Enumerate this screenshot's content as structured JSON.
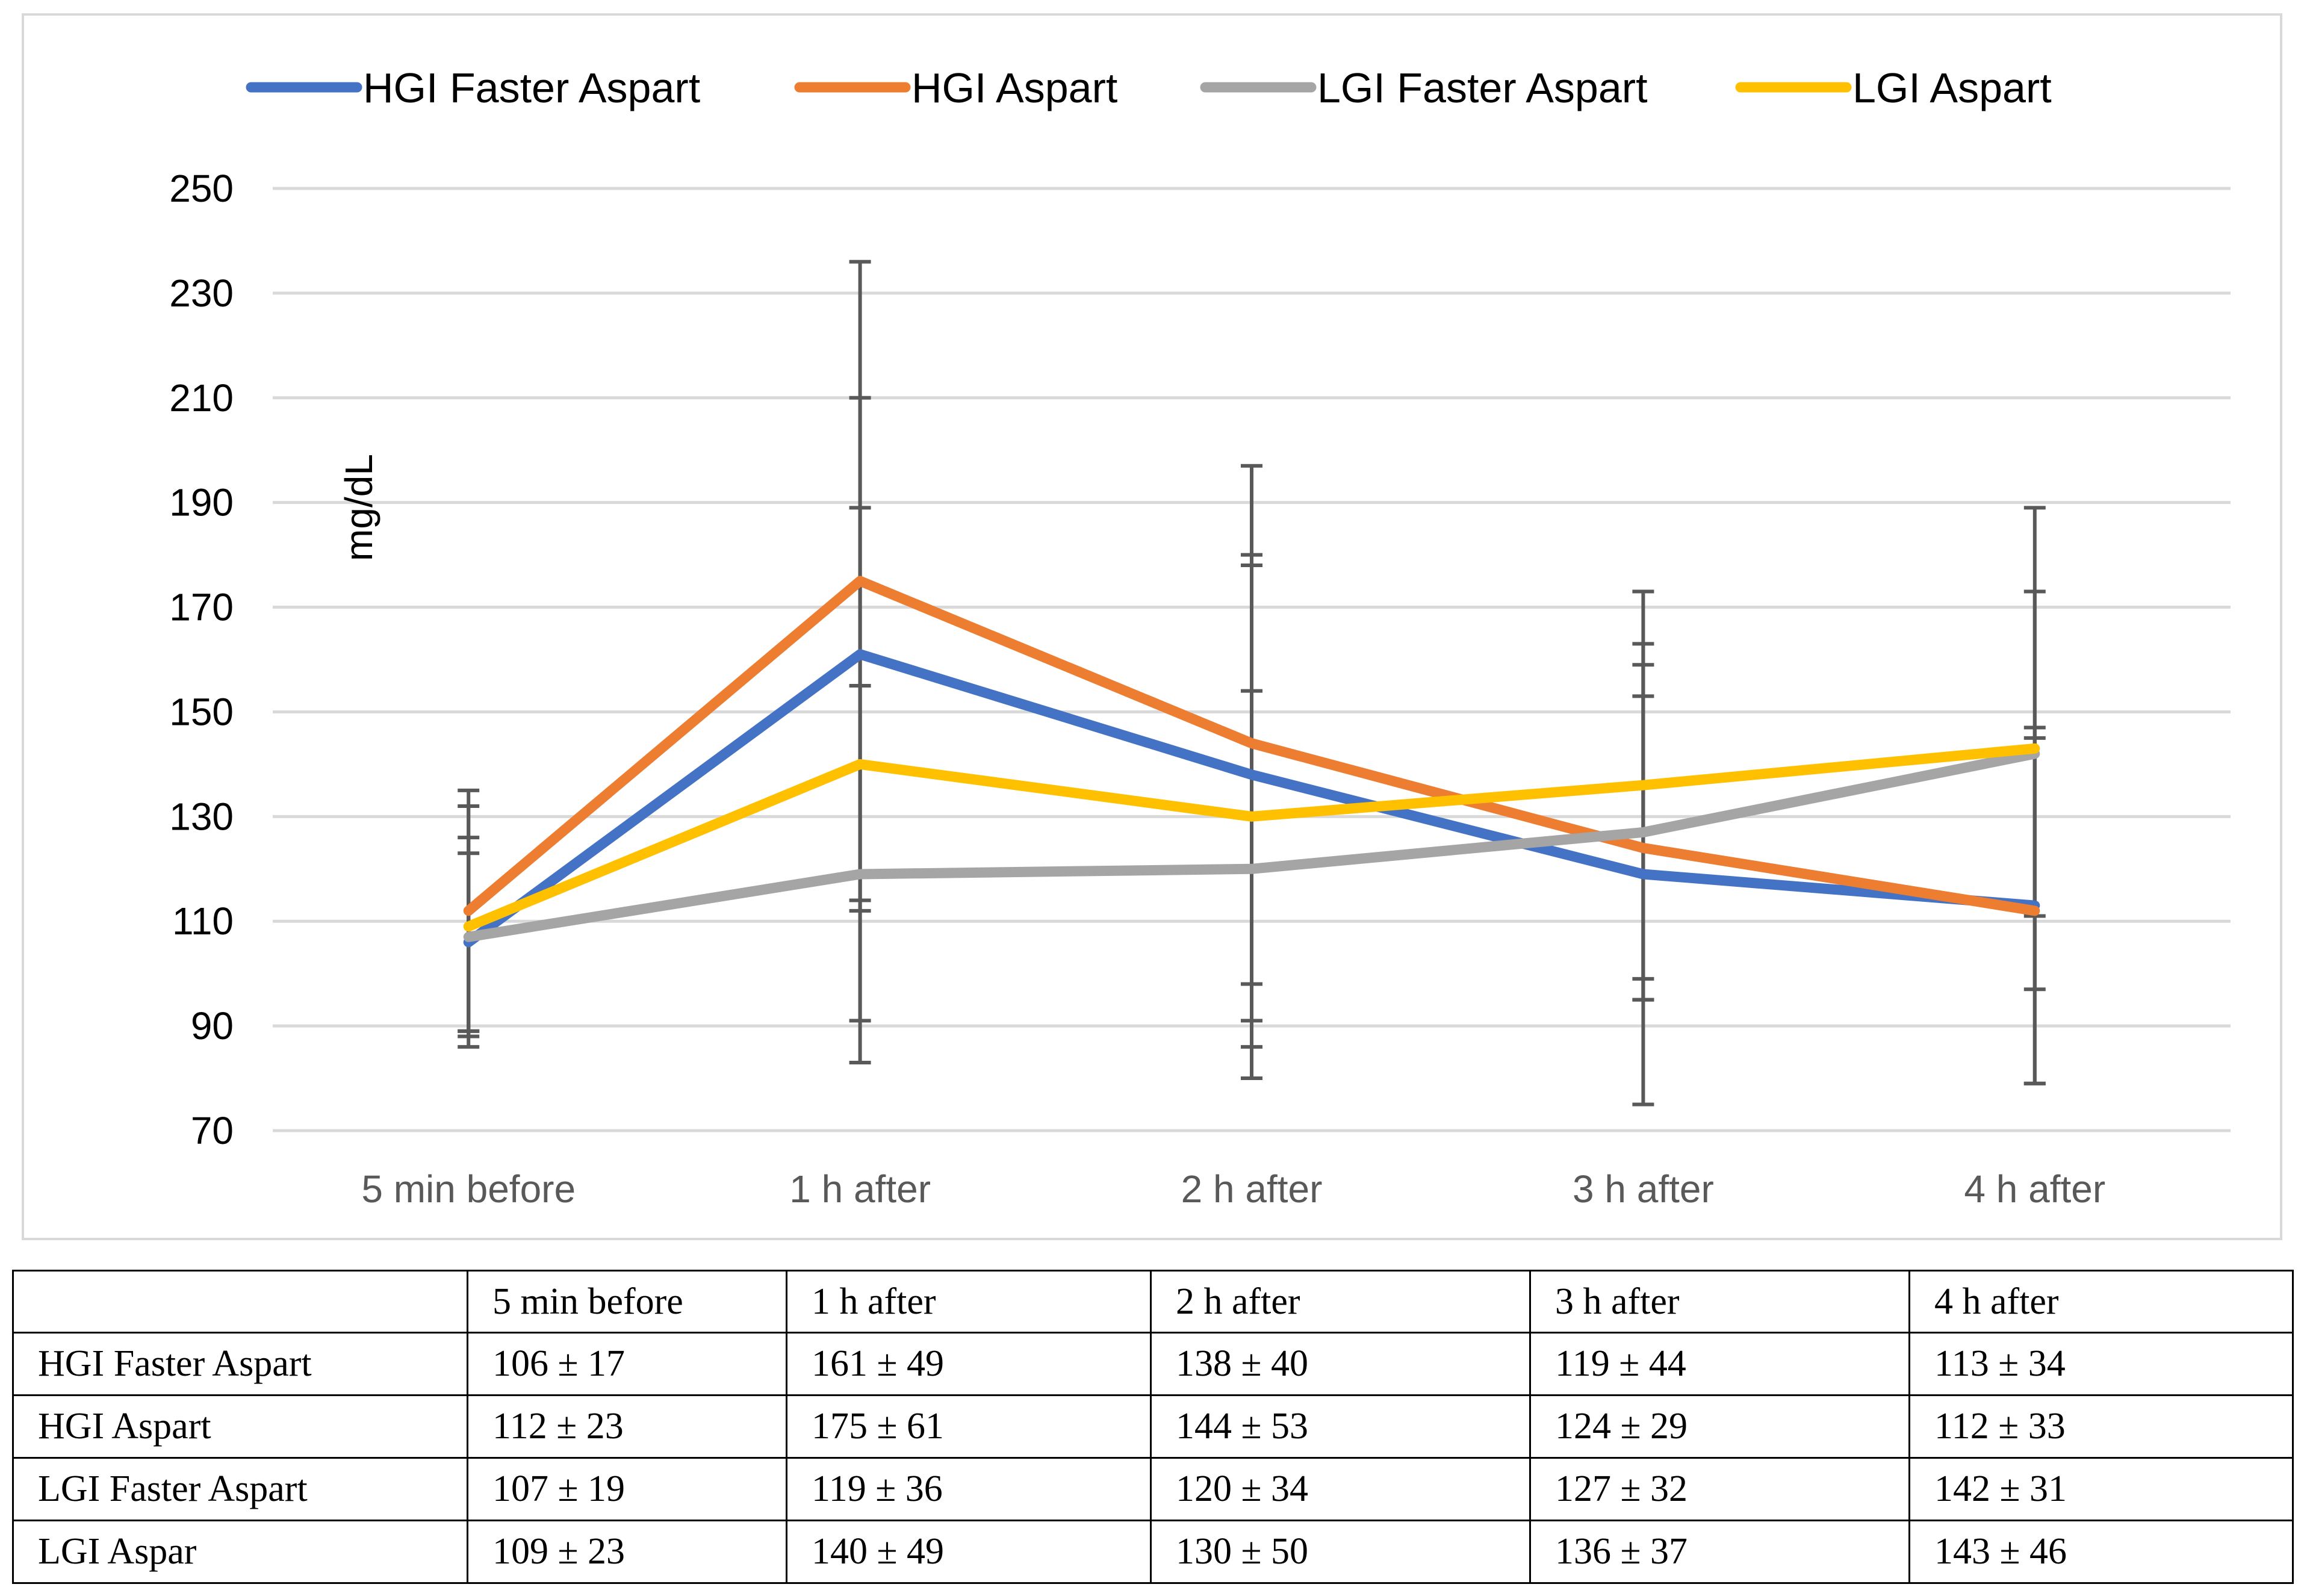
{
  "chart_data": {
    "type": "line",
    "title": "",
    "xlabel": "",
    "ylabel": "mg/dL",
    "ylim": [
      70,
      250
    ],
    "yticks": [
      70,
      90,
      110,
      130,
      150,
      170,
      190,
      210,
      230,
      250
    ],
    "grid": true,
    "legend_position": "top",
    "categories": [
      "5 min before",
      "1 h after",
      "2 h after",
      "3 h after",
      "4 h after"
    ],
    "series": [
      {
        "name": "HGI Faster Aspart",
        "color": "#4472c4",
        "values": [
          106,
          161,
          138,
          119,
          113
        ],
        "sd": [
          17,
          49,
          40,
          44,
          34
        ]
      },
      {
        "name": "HGI Aspart",
        "color": "#ed7d31",
        "values": [
          112,
          175,
          144,
          124,
          112
        ],
        "sd": [
          23,
          61,
          53,
          29,
          33
        ]
      },
      {
        "name": "LGI Faster Aspart",
        "color": "#a5a5a5",
        "values": [
          107,
          119,
          120,
          127,
          142
        ],
        "sd": [
          19,
          36,
          34,
          32,
          31
        ]
      },
      {
        "name": "LGI Aspart",
        "color": "#ffc000",
        "values": [
          109,
          140,
          130,
          136,
          143
        ],
        "sd": [
          23,
          49,
          50,
          37,
          46
        ]
      }
    ],
    "error_bar_color": "#595959",
    "gridline_color": "#d9d9d9"
  },
  "table": {
    "header": [
      "",
      "5 min before",
      "1 h after",
      "2 h after",
      "3 h after",
      "4 h after"
    ],
    "rows": [
      [
        "HGI Faster Aspart",
        "106 ± 17",
        "161 ± 49",
        "138 ± 40",
        "119 ± 44",
        "113 ± 34"
      ],
      [
        "HGI Aspart",
        "112 ± 23",
        "175 ± 61",
        "144 ± 53",
        "124 ± 29",
        "112 ± 33"
      ],
      [
        "LGI Faster Aspart",
        "107 ± 19",
        "119 ± 36",
        "120 ± 34",
        "127 ± 32",
        "142 ± 31"
      ],
      [
        "LGI Aspar",
        "109 ± 23",
        "140 ± 49",
        "130 ± 50",
        "136 ± 37",
        "143 ± 46"
      ]
    ]
  }
}
